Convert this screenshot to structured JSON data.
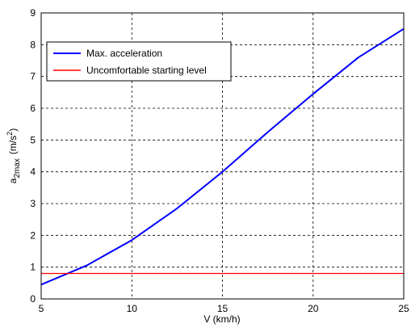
{
  "chart_data": {
    "type": "line",
    "xlabel": "V (km/h)",
    "ylabel": {
      "base": "a",
      "sub": "2max",
      "unit_pre": "(m/s",
      "unit_sup": "2",
      "unit_post": ")"
    },
    "xlim": [
      5,
      25
    ],
    "ylim": [
      0,
      9
    ],
    "xticks": [
      5,
      10,
      15,
      20,
      25
    ],
    "yticks": [
      0,
      1,
      2,
      3,
      4,
      5,
      6,
      7,
      8,
      9
    ],
    "grid": true,
    "legend_position": "top-left",
    "series": [
      {
        "name": "Max. acceleration",
        "color": "#0000ff",
        "x": [
          5,
          7.5,
          10,
          12.5,
          15,
          17.5,
          20,
          22.5,
          25
        ],
        "y": [
          0.45,
          1.05,
          1.85,
          2.85,
          4.0,
          5.25,
          6.45,
          7.6,
          8.5
        ]
      },
      {
        "name": "Uncomfortable starting level",
        "color": "#ff0000",
        "x": [
          5,
          25
        ],
        "y": [
          0.8,
          0.8
        ]
      }
    ]
  }
}
